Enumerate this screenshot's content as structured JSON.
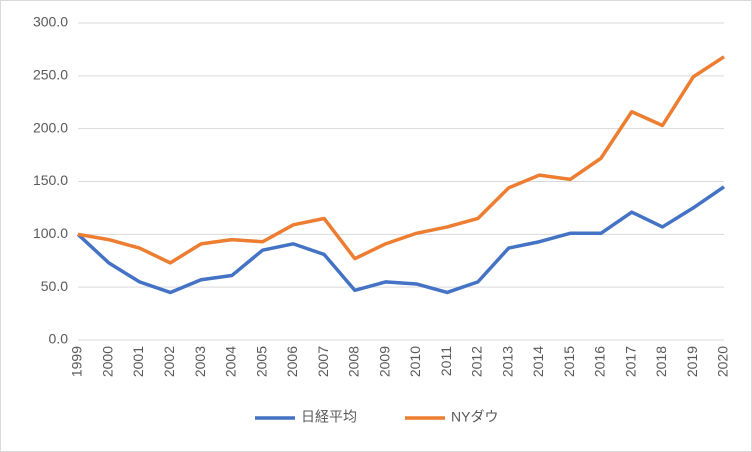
{
  "chart_data": {
    "type": "line",
    "categories": [
      "1999",
      "2000",
      "2001",
      "2002",
      "2003",
      "2004",
      "2005",
      "2006",
      "2007",
      "2008",
      "2009",
      "2010",
      "2011",
      "2012",
      "2013",
      "2014",
      "2015",
      "2016",
      "2017",
      "2018",
      "2019",
      "2020"
    ],
    "series": [
      {
        "name": "日経平均",
        "color": "#4472c4",
        "values": [
          100,
          73,
          55,
          45,
          57,
          61,
          85,
          91,
          81,
          47,
          55,
          53,
          45,
          55,
          87,
          93,
          101,
          101,
          121,
          107,
          125,
          145
        ]
      },
      {
        "name": "NYダウ",
        "color": "#ed7d31",
        "values": [
          100,
          95,
          87,
          73,
          91,
          95,
          93,
          109,
          115,
          77,
          91,
          101,
          107,
          115,
          144,
          156,
          152,
          172,
          216,
          203,
          249,
          268
        ]
      }
    ],
    "ylim": [
      0,
      300
    ],
    "yticks": [
      {
        "value": 0,
        "label": "0.0"
      },
      {
        "value": 50,
        "label": "50.0"
      },
      {
        "value": 100,
        "label": "100.0"
      },
      {
        "value": 150,
        "label": "150.0"
      },
      {
        "value": 200,
        "label": "200.0"
      },
      {
        "value": 250,
        "label": "250.0"
      },
      {
        "value": 300,
        "label": "300.0"
      }
    ],
    "grid": true,
    "legend": "bottom"
  }
}
